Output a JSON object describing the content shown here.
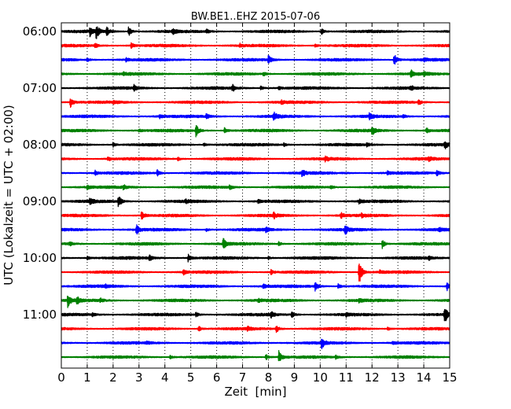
{
  "chart_data": {
    "type": "line",
    "title": "BW.BE1..EHZ 2015-07-06",
    "xlabel": "Zeit  [min]",
    "ylabel": "UTC (Lokalzeit = UTC + 02:00)",
    "xlim": [
      0,
      15
    ],
    "x_ticks": [
      "0",
      "1",
      "2",
      "3",
      "4",
      "5",
      "6",
      "7",
      "8",
      "9",
      "10",
      "11",
      "12",
      "13",
      "14",
      "15"
    ],
    "y_ticks": [
      {
        "label": "06:00",
        "row": 0
      },
      {
        "label": "07:00",
        "row": 4
      },
      {
        "label": "08:00",
        "row": 8
      },
      {
        "label": "09:00",
        "row": 12
      },
      {
        "label": "10:00",
        "row": 16
      },
      {
        "label": "11:00",
        "row": 20
      }
    ],
    "grid": "vertical-dotted",
    "row_colors": [
      "#000000",
      "#ff0000",
      "#0000ff",
      "#008000"
    ],
    "series": [
      {
        "start": "06:00",
        "events": [
          {
            "t": 1.1,
            "a": 0.55
          },
          {
            "t": 1.35,
            "a": 0.9
          },
          {
            "t": 1.75,
            "a": 0.5
          },
          {
            "t": 2.6,
            "a": 0.6
          },
          {
            "t": 4.3,
            "a": 0.3
          },
          {
            "t": 5.6,
            "a": 0.25
          },
          {
            "t": 10.05,
            "a": 0.45
          }
        ]
      },
      {
        "start": "06:15",
        "events": [
          {
            "t": 1.3,
            "a": 0.25
          },
          {
            "t": 2.7,
            "a": 0.35
          },
          {
            "t": 6.9,
            "a": 0.2
          },
          {
            "t": 9.8,
            "a": 0.2
          }
        ]
      },
      {
        "start": "06:30",
        "events": [
          {
            "t": 1.0,
            "a": 0.2
          },
          {
            "t": 2.5,
            "a": 0.2
          },
          {
            "t": 8.0,
            "a": 0.55
          },
          {
            "t": 12.85,
            "a": 0.85
          },
          {
            "t": 14.0,
            "a": 0.2
          }
        ]
      },
      {
        "start": "06:45",
        "events": [
          {
            "t": 2.4,
            "a": 0.2
          },
          {
            "t": 7.8,
            "a": 0.3
          },
          {
            "t": 13.5,
            "a": 0.45
          },
          {
            "t": 14.0,
            "a": 0.25
          }
        ]
      },
      {
        "start": "07:00",
        "events": [
          {
            "t": 2.8,
            "a": 0.35
          },
          {
            "t": 6.6,
            "a": 0.45
          },
          {
            "t": 7.7,
            "a": 0.25
          },
          {
            "t": 8.4,
            "a": 0.2
          },
          {
            "t": 13.5,
            "a": 0.25
          }
        ]
      },
      {
        "start": "07:15",
        "events": [
          {
            "t": 0.35,
            "a": 0.7
          },
          {
            "t": 2.0,
            "a": 0.2
          },
          {
            "t": 8.5,
            "a": 0.2
          },
          {
            "t": 13.8,
            "a": 0.35
          }
        ]
      },
      {
        "start": "07:30",
        "events": [
          {
            "t": 3.8,
            "a": 0.2
          },
          {
            "t": 5.6,
            "a": 0.35
          },
          {
            "t": 8.2,
            "a": 0.55
          },
          {
            "t": 11.9,
            "a": 0.35
          },
          {
            "t": 13.2,
            "a": 0.2
          }
        ]
      },
      {
        "start": "07:45",
        "events": [
          {
            "t": 3.0,
            "a": 0.2
          },
          {
            "t": 5.2,
            "a": 0.85
          },
          {
            "t": 6.3,
            "a": 0.35
          },
          {
            "t": 12.0,
            "a": 0.6
          },
          {
            "t": 14.1,
            "a": 0.35
          }
        ]
      },
      {
        "start": "08:00",
        "events": [
          {
            "t": 2.0,
            "a": 0.3
          },
          {
            "t": 5.5,
            "a": 0.2
          },
          {
            "t": 8.6,
            "a": 0.2
          },
          {
            "t": 11.8,
            "a": 0.2
          },
          {
            "t": 14.8,
            "a": 0.55
          }
        ]
      },
      {
        "start": "08:15",
        "events": [
          {
            "t": 1.8,
            "a": 0.35
          },
          {
            "t": 4.5,
            "a": 0.2
          },
          {
            "t": 10.2,
            "a": 0.3
          },
          {
            "t": 14.2,
            "a": 0.3
          }
        ]
      },
      {
        "start": "08:30",
        "events": [
          {
            "t": 1.3,
            "a": 0.3
          },
          {
            "t": 3.7,
            "a": 0.4
          },
          {
            "t": 9.3,
            "a": 0.45
          },
          {
            "t": 12.6,
            "a": 0.2
          },
          {
            "t": 14.5,
            "a": 0.35
          }
        ]
      },
      {
        "start": "08:45",
        "events": [
          {
            "t": 1.0,
            "a": 0.2
          },
          {
            "t": 2.4,
            "a": 0.3
          },
          {
            "t": 6.5,
            "a": 0.3
          },
          {
            "t": 10.4,
            "a": 0.2
          }
        ]
      },
      {
        "start": "09:00",
        "events": [
          {
            "t": 1.1,
            "a": 0.45
          },
          {
            "t": 2.2,
            "a": 0.75
          },
          {
            "t": 4.8,
            "a": 0.2
          },
          {
            "t": 7.6,
            "a": 0.2
          },
          {
            "t": 11.5,
            "a": 0.25
          }
        ]
      },
      {
        "start": "09:15",
        "events": [
          {
            "t": 3.1,
            "a": 0.6
          },
          {
            "t": 8.2,
            "a": 0.35
          },
          {
            "t": 10.8,
            "a": 0.35
          },
          {
            "t": 11.6,
            "a": 0.2
          }
        ]
      },
      {
        "start": "09:30",
        "events": [
          {
            "t": 2.9,
            "a": 0.6
          },
          {
            "t": 5.6,
            "a": 0.2
          },
          {
            "t": 7.9,
            "a": 0.3
          },
          {
            "t": 10.95,
            "a": 0.6
          },
          {
            "t": 14.6,
            "a": 0.2
          }
        ]
      },
      {
        "start": "09:45",
        "events": [
          {
            "t": 0.3,
            "a": 0.25
          },
          {
            "t": 6.25,
            "a": 0.7
          },
          {
            "t": 8.4,
            "a": 0.25
          },
          {
            "t": 12.4,
            "a": 0.6
          }
        ]
      },
      {
        "start": "10:00",
        "events": [
          {
            "t": 1.0,
            "a": 0.2
          },
          {
            "t": 3.4,
            "a": 0.4
          },
          {
            "t": 4.9,
            "a": 0.45
          },
          {
            "t": 8.0,
            "a": 0.2
          },
          {
            "t": 14.2,
            "a": 0.2
          }
        ]
      },
      {
        "start": "10:15",
        "events": [
          {
            "t": 4.7,
            "a": 0.35
          },
          {
            "t": 8.1,
            "a": 0.3
          },
          {
            "t": 11.5,
            "a": 1.9
          },
          {
            "t": 12.3,
            "a": 0.2
          }
        ]
      },
      {
        "start": "10:30",
        "events": [
          {
            "t": 1.7,
            "a": 0.2
          },
          {
            "t": 7.8,
            "a": 0.3
          },
          {
            "t": 9.8,
            "a": 0.55
          },
          {
            "t": 10.7,
            "a": 0.4
          },
          {
            "t": 14.9,
            "a": 0.5
          }
        ]
      },
      {
        "start": "10:45",
        "events": [
          {
            "t": 0.25,
            "a": 0.85
          },
          {
            "t": 0.6,
            "a": 0.45
          },
          {
            "t": 1.5,
            "a": 0.25
          },
          {
            "t": 7.6,
            "a": 0.2
          },
          {
            "t": 11.5,
            "a": 0.2
          }
        ]
      },
      {
        "start": "11:00",
        "events": [
          {
            "t": 1.2,
            "a": 0.2
          },
          {
            "t": 5.2,
            "a": 0.3
          },
          {
            "t": 8.1,
            "a": 0.35
          },
          {
            "t": 8.9,
            "a": 0.4
          },
          {
            "t": 11.0,
            "a": 0.2
          },
          {
            "t": 14.8,
            "a": 1.2
          }
        ]
      },
      {
        "start": "11:15",
        "events": [
          {
            "t": 5.3,
            "a": 0.35
          },
          {
            "t": 7.2,
            "a": 0.2
          },
          {
            "t": 8.3,
            "a": 0.45
          },
          {
            "t": 12.6,
            "a": 0.2
          }
        ]
      },
      {
        "start": "11:30",
        "events": [
          {
            "t": 3.3,
            "a": 0.2
          },
          {
            "t": 10.05,
            "a": 0.75
          },
          {
            "t": 12.8,
            "a": 0.2
          }
        ]
      },
      {
        "start": "11:45",
        "events": [
          {
            "t": 4.2,
            "a": 0.2
          },
          {
            "t": 7.9,
            "a": 0.35
          },
          {
            "t": 8.4,
            "a": 0.75
          },
          {
            "t": 10.6,
            "a": 0.2
          }
        ]
      }
    ]
  }
}
